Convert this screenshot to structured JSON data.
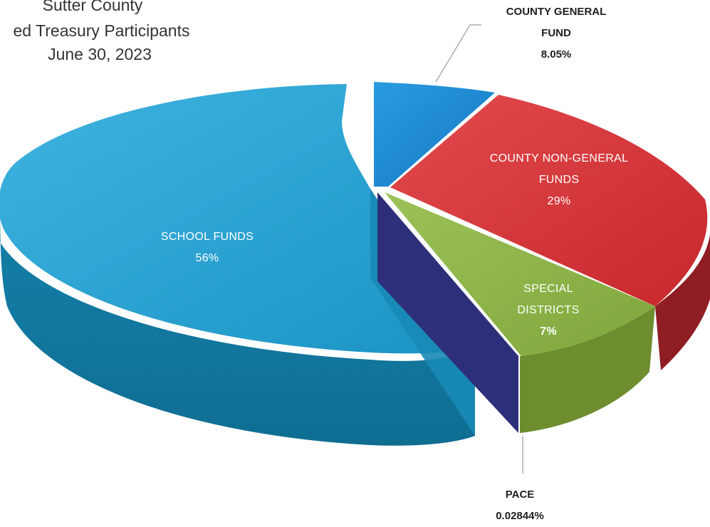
{
  "chart_data": {
    "type": "pie",
    "title_lines": [
      "Sutter County",
      "ed Treasury Participants",
      "June 30, 2023"
    ],
    "slices": [
      {
        "label": "COUNTY GENERAL FUND",
        "value": 8.05,
        "value_label": "8.05%",
        "color": "#1a8bd4"
      },
      {
        "label": "COUNTY NON-GENERAL FUNDS",
        "value": 29,
        "value_label": "29%",
        "color": "#d73c3f"
      },
      {
        "label": "SPECIAL DISTRICTS",
        "value": 7,
        "value_label": "7%",
        "color": "#8fb34a"
      },
      {
        "label": "PACE",
        "value": 0.02844,
        "value_label": "0.02844%",
        "color": "#2e2f7a"
      },
      {
        "label": "SCHOOL FUNDS",
        "value": 56,
        "value_label": "56%",
        "color": "#1e99c9"
      }
    ],
    "legend": "none"
  },
  "labels": {
    "county_general_l1": "COUNTY GENERAL",
    "county_general_l2": "FUND",
    "county_general_pct": "8.05%",
    "non_general_l1": "COUNTY NON-GENERAL",
    "non_general_l2": "FUNDS",
    "non_general_pct": "29%",
    "special_l1": "SPECIAL",
    "special_l2": "DISTRICTS",
    "special_pct": "7%",
    "pace_l1": "PACE",
    "pace_pct": "0.02844%",
    "school_l1": "SCHOOL FUNDS",
    "school_pct": "56%"
  }
}
